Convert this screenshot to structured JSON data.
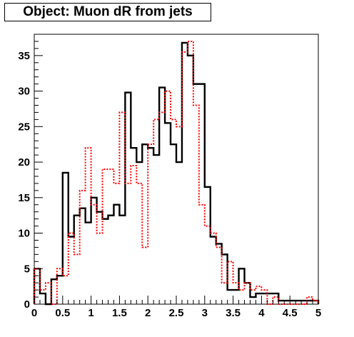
{
  "chart_data": {
    "type": "histogram",
    "title": "Object: Muon dR from jets",
    "xlabel": "",
    "ylabel": "",
    "xlim": [
      0,
      5
    ],
    "ylim": [
      0,
      38
    ],
    "grid": false,
    "legend": "none",
    "bin_edges": [
      0,
      0.1,
      0.2,
      0.3,
      0.4,
      0.5,
      0.6,
      0.7,
      0.8,
      0.9,
      1.0,
      1.1,
      1.2,
      1.3,
      1.4,
      1.5,
      1.6,
      1.7,
      1.8,
      1.9,
      2.0,
      2.1,
      2.2,
      2.3,
      2.4,
      2.5,
      2.6,
      2.7,
      2.8,
      2.9,
      3.0,
      3.1,
      3.2,
      3.3,
      3.4,
      3.5,
      3.6,
      3.7,
      3.8,
      3.9,
      4.0,
      4.1,
      4.2,
      4.3,
      4.4,
      4.5,
      4.6,
      4.7,
      4.8,
      4.9,
      5.0
    ],
    "x_ticks": [
      "0",
      "0.5",
      "1",
      "1.5",
      "2",
      "2.5",
      "3",
      "3.5",
      "4",
      "4.5",
      "5"
    ],
    "y_ticks": [
      "0",
      "5",
      "10",
      "15",
      "20",
      "25",
      "30",
      "35"
    ],
    "series": [
      {
        "color": "#000000",
        "style": "solid",
        "values": [
          5,
          1.5,
          0,
          3.5,
          4,
          18.5,
          9.5,
          12.5,
          13.5,
          11.5,
          15,
          13,
          12,
          12.5,
          14,
          12.5,
          29.8,
          22,
          20,
          22.5,
          22,
          21,
          30.5,
          25.5,
          22.5,
          20,
          36.8,
          35,
          31,
          31,
          16.5,
          9.5,
          8.5,
          7,
          2,
          2,
          5,
          3,
          1,
          1.5,
          1.5,
          1.5,
          1.5,
          0.5,
          0.5,
          0.5,
          0.5,
          0.5,
          0.5,
          0.5
        ]
      },
      {
        "color": "#ff0000",
        "style": "dotted",
        "values": [
          5,
          2,
          3,
          0,
          5,
          4,
          10,
          7,
          16,
          22,
          14,
          10,
          19,
          19,
          17,
          27,
          17,
          19.5,
          17,
          8,
          22.5,
          26,
          27,
          30,
          26,
          25,
          35.5,
          37,
          28,
          14,
          11,
          10,
          8,
          3,
          6,
          3,
          2,
          3,
          2,
          2.5,
          2,
          0,
          1,
          0,
          0,
          0,
          0,
          0,
          1,
          0.5
        ]
      }
    ]
  }
}
